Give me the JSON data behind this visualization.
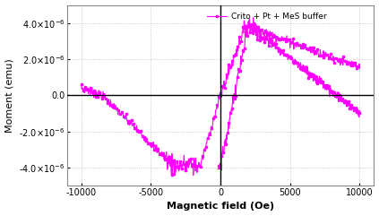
{
  "xlabel": "Magnetic field (Oe)",
  "ylabel": "Moment (emu)",
  "legend_label": "Crito + Pt + MeS buffer",
  "line_color": "#FF00FF",
  "marker": "s",
  "markersize": 1.8,
  "linewidth": 0.8,
  "xlim": [
    -11000,
    11000
  ],
  "ylim": [
    -5e-06,
    5e-06
  ],
  "xticks": [
    -10000,
    -5000,
    0,
    5000,
    10000
  ],
  "yticks": [
    -4e-06,
    -2e-06,
    0.0,
    2e-06,
    4e-06
  ],
  "background_color": "#ffffff",
  "grid_color": "#bbbbbb"
}
